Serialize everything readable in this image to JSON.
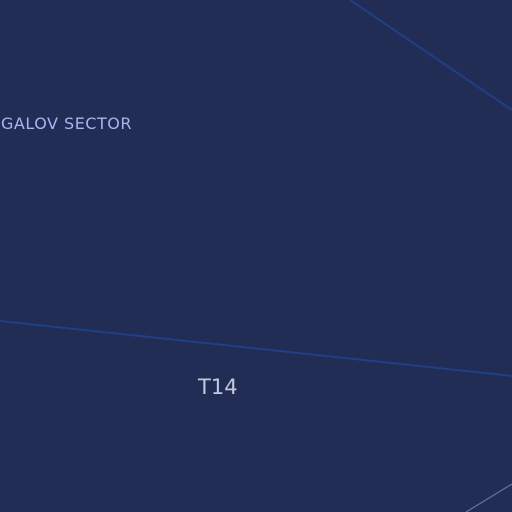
{
  "map": {
    "sector_label": "GALOV SECTOR",
    "system_label": "T14",
    "colors": {
      "background": "#222d55",
      "route_line": "#1e3f8a",
      "edge_line": "#6a7399",
      "sector_text": "#a9b3f2",
      "system_text": "#c3c8de"
    }
  }
}
